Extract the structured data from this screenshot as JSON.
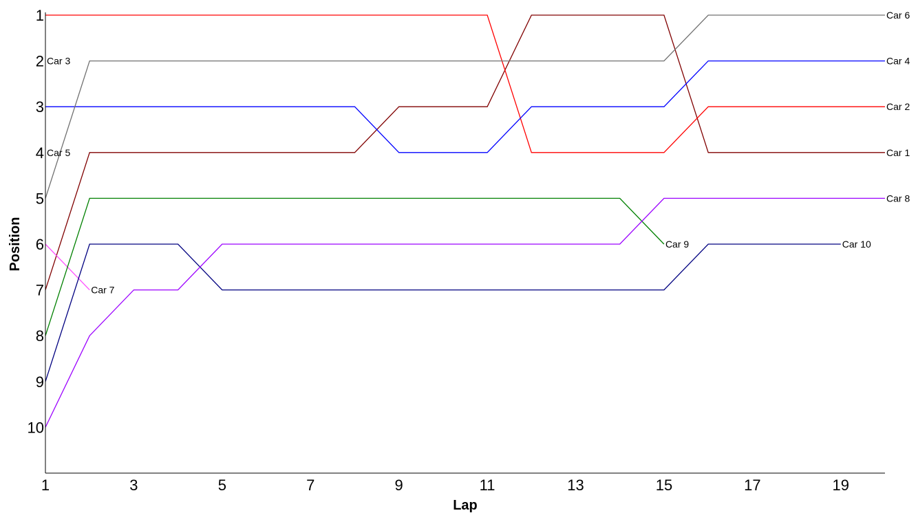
{
  "chart_data": {
    "type": "line",
    "xlabel": "Lap",
    "ylabel": "Position",
    "xlim": [
      1,
      20
    ],
    "ylim": [
      1,
      11
    ],
    "y_inverted": true,
    "x_ticks": [
      1,
      3,
      5,
      7,
      9,
      11,
      13,
      15,
      17,
      19
    ],
    "y_ticks": [
      1,
      2,
      3,
      4,
      5,
      6,
      7,
      8,
      9,
      10
    ],
    "grid": false,
    "legend": "none",
    "series": [
      {
        "name": "Car 1",
        "color": "#800000",
        "x": [
          1,
          2,
          3,
          4,
          5,
          6,
          7,
          8,
          9,
          10,
          11,
          12,
          13,
          14,
          15,
          16,
          17,
          18,
          19,
          20
        ],
        "y": [
          7,
          4,
          4,
          4,
          4,
          4,
          4,
          4,
          3,
          3,
          3,
          1,
          1,
          1,
          1,
          4,
          4,
          4,
          4,
          4
        ]
      },
      {
        "name": "Car 2",
        "color": "#ff0000",
        "x": [
          1,
          2,
          3,
          4,
          5,
          6,
          7,
          8,
          9,
          10,
          11,
          12,
          13,
          14,
          15,
          16,
          17,
          18,
          19,
          20
        ],
        "y": [
          1,
          1,
          1,
          1,
          1,
          1,
          1,
          1,
          1,
          1,
          1,
          4,
          4,
          4,
          4,
          3,
          3,
          3,
          3,
          3
        ]
      },
      {
        "name": "Car 3",
        "color": "#ff4fff",
        "x": [
          1,
          2
        ],
        "y": [
          6,
          7
        ]
      },
      {
        "name": "Car 4",
        "color": "#0000ff",
        "x": [
          1,
          2,
          3,
          4,
          5,
          6,
          7,
          8,
          9,
          10,
          11,
          12,
          13,
          14,
          15,
          16,
          17,
          18,
          19,
          20
        ],
        "y": [
          3,
          3,
          3,
          3,
          3,
          3,
          3,
          3,
          4,
          4,
          4,
          3,
          3,
          3,
          3,
          2,
          2,
          2,
          2,
          2
        ]
      },
      {
        "name": "Car 5",
        "color": "#008000",
        "x": [
          1,
          2,
          3,
          4,
          5,
          6,
          7,
          8,
          9,
          10,
          11,
          12,
          13,
          14,
          15
        ],
        "y": [
          8,
          5,
          5,
          5,
          5,
          5,
          5,
          5,
          5,
          5,
          5,
          5,
          5,
          5,
          6
        ]
      },
      {
        "name": "Car 6",
        "color": "#707070",
        "x": [
          1,
          2,
          3,
          4,
          5,
          6,
          7,
          8,
          9,
          10,
          11,
          12,
          13,
          14,
          15,
          16,
          17,
          18,
          19,
          20
        ],
        "y": [
          5,
          2,
          2,
          2,
          2,
          2,
          2,
          2,
          2,
          2,
          2,
          2,
          2,
          2,
          2,
          1,
          1,
          1,
          1,
          1
        ]
      },
      {
        "name": "Car 7",
        "color": "#000080",
        "x": [
          1,
          2,
          3,
          4,
          5,
          6,
          7,
          8,
          9,
          10,
          11,
          12,
          13,
          14,
          15,
          16,
          17,
          18,
          19
        ],
        "y": [
          9,
          6,
          6,
          6,
          7,
          7,
          7,
          7,
          7,
          7,
          7,
          7,
          7,
          7,
          7,
          6,
          6,
          6,
          6
        ]
      },
      {
        "name": "Car 8",
        "color": "#9b00ff",
        "x": [
          1,
          2,
          3,
          4,
          5,
          6,
          7,
          8,
          9,
          10,
          11,
          12,
          13,
          14,
          15,
          16,
          17,
          18,
          19,
          20
        ],
        "y": [
          10,
          8,
          7,
          7,
          6,
          6,
          6,
          6,
          6,
          6,
          6,
          6,
          6,
          6,
          5,
          5,
          5,
          5,
          5,
          5
        ]
      }
    ],
    "annotations": [
      {
        "text": "Car 3",
        "x": 1,
        "y": 2
      },
      {
        "text": "Car 5",
        "x": 1,
        "y": 4
      },
      {
        "text": "Car 7",
        "x": 2,
        "y": 7
      },
      {
        "text": "Car 9",
        "x": 15,
        "y": 6
      },
      {
        "text": "Car 10",
        "x": 19,
        "y": 6
      },
      {
        "text": "Car 6",
        "x": 20,
        "y": 1
      },
      {
        "text": "Car 4",
        "x": 20,
        "y": 2
      },
      {
        "text": "Car 2",
        "x": 20,
        "y": 3
      },
      {
        "text": "Car 1",
        "x": 20,
        "y": 4
      },
      {
        "text": "Car 8",
        "x": 20,
        "y": 5
      }
    ]
  }
}
